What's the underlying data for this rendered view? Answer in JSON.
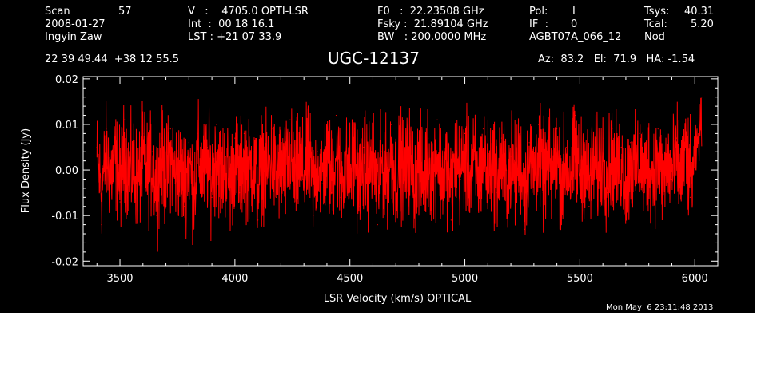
{
  "header": {
    "scan_label": "Scan",
    "scan_value": "57",
    "date": "2008-01-27",
    "observer": "Ingyin Zaw",
    "v_line": "V   :    4705.0 OPTI-LSR",
    "int_line": "Int  :  00 18 16.1",
    "lst_line": "LST : +21 07 33.9",
    "f0_line": "F0   :  22.23508 GHz",
    "fsky_line": "Fsky :  21.89104 GHz",
    "bw_line": "BW   : 200.0000 MHz",
    "pol_label": "Pol:",
    "pol_value": "I",
    "if_label": "IF  :",
    "if_value": "0",
    "project": "AGBT07A_066_12",
    "tsys_label": "Tsys:",
    "tsys_value": "40.31",
    "tcal_label": "Tcal:",
    "tcal_value": "5.20",
    "mode": "Nod",
    "coords": "22 39 49.44  +38 12 55.5",
    "az_el_ha": "Az:  83.2   El:  71.9   HA: -1.54"
  },
  "footer": {
    "timestamp": "Mon May  6 23:11:48 2013"
  },
  "colors": {
    "background": "#000000",
    "axes": "#ffffff",
    "series": "#ff0000"
  },
  "chart_data": {
    "type": "line",
    "title": "UGC-12137",
    "xlabel": "LSR Velocity (km/s) OPTICAL",
    "ylabel": "Flux Density (Jy)",
    "xlim": [
      3340,
      6100
    ],
    "ylim": [
      -0.021,
      0.0205
    ],
    "xticks": [
      3500,
      4000,
      4500,
      5000,
      5500,
      6000
    ],
    "yticks": [
      -0.02,
      -0.01,
      0.0,
      0.01,
      0.02
    ],
    "ytick_labels": [
      "-0.02",
      "-0.01",
      "0.00",
      "0.01",
      "0.02"
    ],
    "grid": false,
    "series": [
      {
        "color": "#ff0000",
        "x": [
          3400,
          3420,
          3440,
          3460,
          3480,
          3500,
          3520,
          3540,
          3560,
          3580,
          3600,
          3620,
          3640,
          3660,
          3680,
          3700,
          3720,
          3740,
          3760,
          3780,
          3800,
          3820,
          3840,
          3860,
          3880,
          3900,
          3920,
          3940,
          3960,
          3980,
          4000,
          4020,
          4040,
          4060,
          4080,
          4100,
          4120,
          4140,
          4160,
          4180,
          4200,
          4220,
          4240,
          4260,
          4280,
          4300,
          4320,
          4340,
          4360,
          4380,
          4400,
          4420,
          4440,
          4460,
          4480,
          4500,
          4520,
          4540,
          4560,
          4580,
          4600,
          4620,
          4640,
          4660,
          4680,
          4700,
          4720,
          4740,
          4760,
          4780,
          4800,
          4820,
          4840,
          4860,
          4880,
          4900,
          4920,
          4940,
          4960,
          4980,
          5000,
          5020,
          5040,
          5060,
          5080,
          5100,
          5120,
          5140,
          5160,
          5180,
          5200,
          5220,
          5240,
          5260,
          5280,
          5300,
          5320,
          5340,
          5360,
          5380,
          5400,
          5420,
          5440,
          5460,
          5480,
          5500,
          5520,
          5540,
          5560,
          5580,
          5600,
          5620,
          5640,
          5660,
          5680,
          5700,
          5720,
          5740,
          5760,
          5780,
          5800,
          5820,
          5840,
          5860,
          5880,
          5900,
          5920,
          5940,
          5960,
          5980,
          6000,
          6010,
          6020,
          6030
        ],
        "y": [
          0.005,
          -0.012,
          0.009,
          -0.003,
          0.006,
          -0.007,
          0.011,
          -0.004,
          0.002,
          -0.009,
          0.008,
          -0.002,
          0.004,
          -0.01,
          0.007,
          -0.005,
          0.009,
          -0.003,
          0.001,
          -0.008,
          0.006,
          -0.013,
          0.008,
          -0.002,
          0.005,
          -0.006,
          0.01,
          -0.004,
          0.003,
          -0.009,
          0.007,
          -0.005,
          0.008,
          -0.002,
          0.004,
          -0.011,
          0.006,
          -0.003,
          0.009,
          -0.006,
          0.002,
          -0.004,
          0.011,
          -0.007,
          0.005,
          -0.002,
          0.008,
          -0.01,
          0.004,
          -0.003,
          0.007,
          -0.005,
          0.012,
          -0.006,
          0.003,
          -0.004,
          0.009,
          -0.008,
          0.005,
          -0.002,
          0.006,
          -0.012,
          0.004,
          -0.003,
          0.01,
          -0.005,
          0.006,
          -0.002,
          0.008,
          -0.009,
          0.004,
          -0.006,
          0.007,
          -0.003,
          0.011,
          -0.005,
          0.003,
          -0.011,
          0.005,
          -0.002,
          0.008,
          -0.004,
          0.004,
          -0.007,
          0.009,
          -0.003,
          0.005,
          -0.005,
          0.007,
          -0.009,
          0.003,
          -0.004,
          0.008,
          -0.013,
          0.006,
          -0.002,
          0.01,
          -0.005,
          0.004,
          -0.003,
          0.009,
          -0.006,
          0.005,
          -0.004,
          0.012,
          -0.003,
          0.006,
          -0.008,
          0.004,
          -0.002,
          0.007,
          -0.005,
          0.009,
          -0.003,
          0.005,
          -0.01,
          0.006,
          -0.002,
          0.008,
          -0.005,
          0.004,
          -0.003,
          0.009,
          -0.007,
          0.005,
          -0.002,
          0.007,
          -0.004,
          0.011,
          -0.006,
          0.004,
          0.007,
          0.012,
          0.016
        ]
      }
    ]
  }
}
